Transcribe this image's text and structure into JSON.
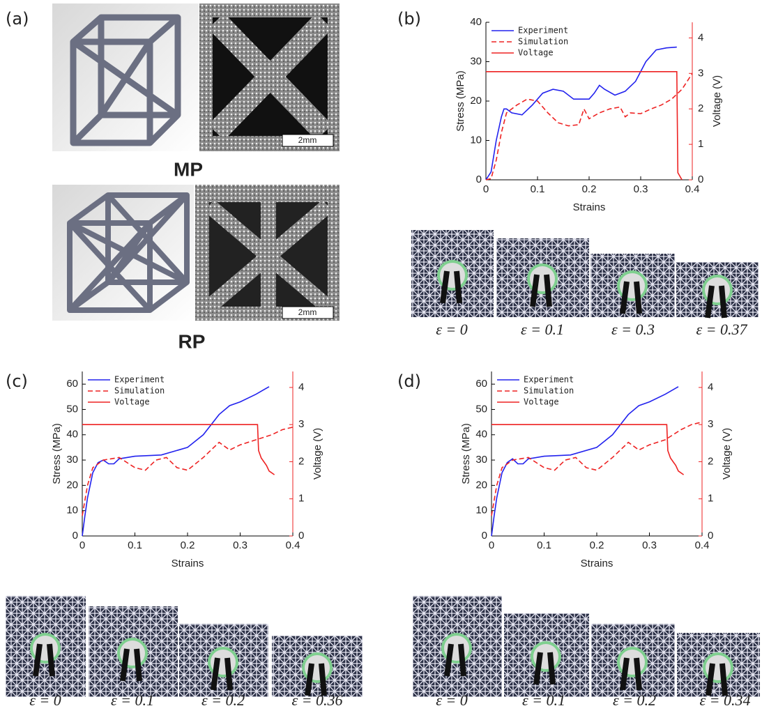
{
  "figure": {
    "panel_labels": [
      "(a)",
      "(b)",
      "(c)",
      "(d)"
    ],
    "structures": [
      "MP",
      "RP"
    ],
    "scale_bars": [
      "2mm",
      "2mm"
    ],
    "strain_labels": [
      [
        "ε = 0",
        "ε = 0.1",
        "ε = 0.3",
        "ε = 0.37"
      ],
      [
        "ε = 0",
        "ε = 0.1",
        "ε = 0.2",
        "ε = 0.36"
      ],
      [
        "ε = 0",
        "ε = 0.1",
        "ε = 0.2",
        "ε = 0.34"
      ]
    ]
  },
  "chart_data": [
    {
      "type": "line",
      "xlabel": "Strains",
      "ylabel": "Stress (MPa)",
      "y2label": "Voltage (V)",
      "xlim": [
        0,
        0.4
      ],
      "xticks": [
        0,
        0.1,
        0.2,
        0.3,
        0.4
      ],
      "ylim": [
        0,
        40
      ],
      "yticks": [
        0,
        10,
        20,
        30,
        40
      ],
      "y2lim": [
        0,
        4.44
      ],
      "y2ticks": [
        0,
        1,
        2,
        3,
        4
      ],
      "legend": "upper-left",
      "series": [
        {
          "name": "Experiment",
          "color": "#2222ee",
          "dash": false,
          "x": [
            0,
            0.01,
            0.02,
            0.03,
            0.035,
            0.04,
            0.05,
            0.07,
            0.09,
            0.11,
            0.13,
            0.15,
            0.17,
            0.2,
            0.21,
            0.22,
            0.23,
            0.25,
            0.27,
            0.29,
            0.31,
            0.33,
            0.35,
            0.37
          ],
          "values": [
            0,
            2,
            10,
            16,
            18,
            18,
            17,
            16.5,
            19,
            22,
            23,
            22.5,
            20.5,
            20.5,
            22,
            24,
            23,
            21.5,
            22.5,
            25,
            30,
            33,
            33.5,
            33.7
          ]
        },
        {
          "name": "Simulation",
          "color": "#ee2222",
          "dash": true,
          "x": [
            0,
            0.01,
            0.02,
            0.03,
            0.04,
            0.06,
            0.08,
            0.1,
            0.12,
            0.14,
            0.16,
            0.18,
            0.19,
            0.2,
            0.22,
            0.24,
            0.26,
            0.27,
            0.28,
            0.3,
            0.32,
            0.34,
            0.36,
            0.38,
            0.4
          ],
          "values": [
            0,
            0.3,
            5,
            12,
            17,
            19,
            20.5,
            20,
            17,
            14.5,
            13.7,
            14,
            18,
            15.5,
            17,
            18,
            18.5,
            16,
            17,
            16.8,
            18,
            19,
            20.5,
            23,
            27
          ]
        },
        {
          "name": "Voltage",
          "color": "#ee2222",
          "dash": false,
          "axis": "y2",
          "x": [
            0,
            0.37,
            0.372,
            0.38
          ],
          "values": [
            3.05,
            3.05,
            0.2,
            0
          ]
        }
      ]
    },
    {
      "type": "line",
      "xlabel": "Strains",
      "ylabel": "Stress (MPa)",
      "y2label": "Voltage (V)",
      "xlim": [
        0,
        0.4
      ],
      "xticks": [
        0,
        0.1,
        0.2,
        0.3,
        0.4
      ],
      "ylim": [
        0,
        65
      ],
      "yticks": [
        0,
        10,
        20,
        30,
        40,
        50,
        60
      ],
      "y2lim": [
        0,
        4.43
      ],
      "y2ticks": [
        0,
        1,
        2,
        3,
        4
      ],
      "legend": "upper-left",
      "series": [
        {
          "name": "Experiment",
          "color": "#2222ee",
          "dash": false,
          "x": [
            0,
            0.005,
            0.01,
            0.02,
            0.03,
            0.04,
            0.05,
            0.06,
            0.07,
            0.1,
            0.15,
            0.2,
            0.23,
            0.26,
            0.28,
            0.3,
            0.33,
            0.355
          ],
          "values": [
            0,
            8,
            15,
            25,
            29,
            30,
            28.5,
            28.5,
            30.5,
            31.5,
            32,
            35,
            40,
            48,
            51.5,
            53,
            56,
            59
          ]
        },
        {
          "name": "Simulation",
          "color": "#ee2222",
          "dash": true,
          "x": [
            0,
            0.01,
            0.02,
            0.04,
            0.07,
            0.1,
            0.12,
            0.14,
            0.16,
            0.18,
            0.2,
            0.23,
            0.26,
            0.28,
            0.3,
            0.33,
            0.36,
            0.38,
            0.4
          ],
          "values": [
            8,
            20,
            27,
            30,
            31,
            27,
            26,
            30,
            31,
            27,
            26,
            31,
            37,
            34,
            36,
            38,
            40,
            42,
            43
          ]
        },
        {
          "name": "Voltage",
          "color": "#ee2222",
          "dash": false,
          "axis": "y2",
          "x": [
            0,
            0.333,
            0.335,
            0.34,
            0.345,
            0.35,
            0.355,
            0.365
          ],
          "values": [
            3,
            3,
            2.3,
            2.1,
            2,
            1.9,
            1.75,
            1.65
          ]
        }
      ]
    },
    {
      "type": "line",
      "xlabel": "Strains",
      "ylabel": "Stress (MPa)",
      "y2label": "Voltage (V)",
      "xlim": [
        0,
        0.4
      ],
      "xticks": [
        0,
        0.1,
        0.2,
        0.3,
        0.4
      ],
      "ylim": [
        0,
        65
      ],
      "yticks": [
        0,
        10,
        20,
        30,
        40,
        50,
        60
      ],
      "y2lim": [
        0,
        4.43
      ],
      "y2ticks": [
        0,
        1,
        2,
        3,
        4
      ],
      "legend": "upper-left",
      "series": [
        {
          "name": "Experiment",
          "color": "#2222ee",
          "dash": false,
          "x": [
            0,
            0.005,
            0.01,
            0.02,
            0.03,
            0.04,
            0.05,
            0.06,
            0.07,
            0.1,
            0.15,
            0.2,
            0.23,
            0.26,
            0.28,
            0.3,
            0.33,
            0.355
          ],
          "values": [
            0,
            8,
            15,
            25,
            29,
            30.5,
            28.5,
            28.5,
            30.5,
            31.5,
            32,
            35,
            40,
            48,
            51.5,
            53,
            56,
            59
          ]
        },
        {
          "name": "Simulation",
          "color": "#ee2222",
          "dash": true,
          "x": [
            0,
            0.01,
            0.02,
            0.04,
            0.07,
            0.1,
            0.12,
            0.14,
            0.16,
            0.18,
            0.2,
            0.23,
            0.26,
            0.28,
            0.3,
            0.33,
            0.36,
            0.38,
            0.4
          ],
          "values": [
            8,
            20,
            27,
            30,
            31,
            27,
            26,
            30,
            31,
            27,
            26,
            31,
            37,
            34,
            36,
            38,
            42,
            44,
            45
          ]
        },
        {
          "name": "Voltage",
          "color": "#ee2222",
          "dash": false,
          "axis": "y2",
          "x": [
            0,
            0.333,
            0.335,
            0.34,
            0.345,
            0.35,
            0.355,
            0.365
          ],
          "values": [
            3,
            3,
            2.3,
            2.1,
            2,
            1.9,
            1.75,
            1.65
          ]
        }
      ]
    }
  ]
}
